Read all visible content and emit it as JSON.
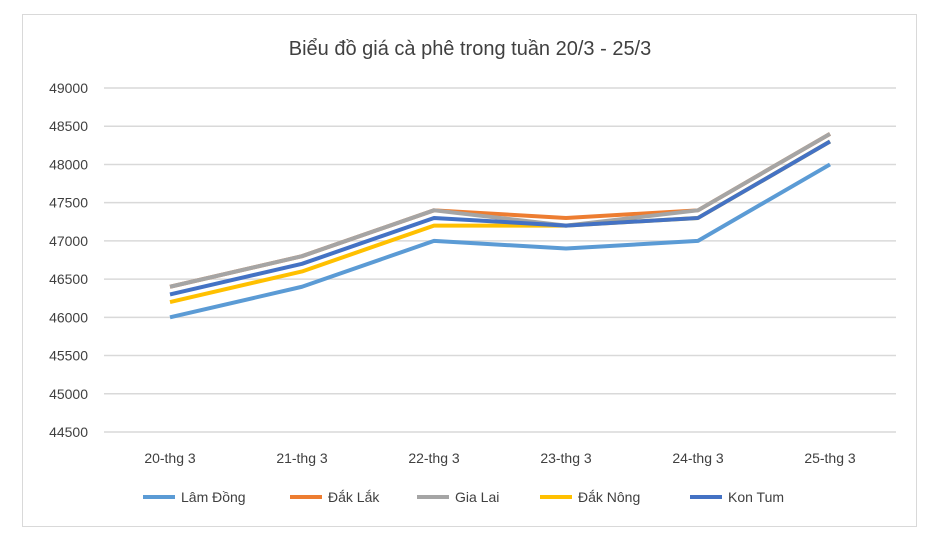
{
  "chart_data": {
    "type": "line",
    "title": "Biểu đồ giá cà phê trong tuần 20/3 - 25/3",
    "categories": [
      "20-thg 3",
      "21-thg 3",
      "22-thg 3",
      "23-thg 3",
      "24-thg 3",
      "25-thg 3"
    ],
    "ylim": [
      44500,
      49000
    ],
    "yticks": [
      "44500",
      "45000",
      "45500",
      "46000",
      "46500",
      "47000",
      "47500",
      "48000",
      "48500",
      "49000"
    ],
    "grid": true,
    "legend_position": "bottom",
    "series": [
      {
        "name": "Lâm Đồng",
        "color": "#5b9bd5",
        "values": [
          46000,
          46400,
          47000,
          46900,
          47000,
          48000
        ]
      },
      {
        "name": "Đắk Lắk",
        "color": "#ed7d31",
        "values": [
          46400,
          46800,
          47400,
          47300,
          47400,
          48400
        ]
      },
      {
        "name": "Gia Lai",
        "color": "#a5a5a5",
        "values": [
          46400,
          46800,
          47400,
          47200,
          47400,
          48400
        ]
      },
      {
        "name": "Đắk Nông",
        "color": "#ffc000",
        "values": [
          46200,
          46600,
          47200,
          47200,
          47300,
          48300
        ]
      },
      {
        "name": "Kon Tum",
        "color": "#4472c4",
        "values": [
          46300,
          46700,
          47300,
          47200,
          47300,
          48300
        ]
      }
    ]
  }
}
